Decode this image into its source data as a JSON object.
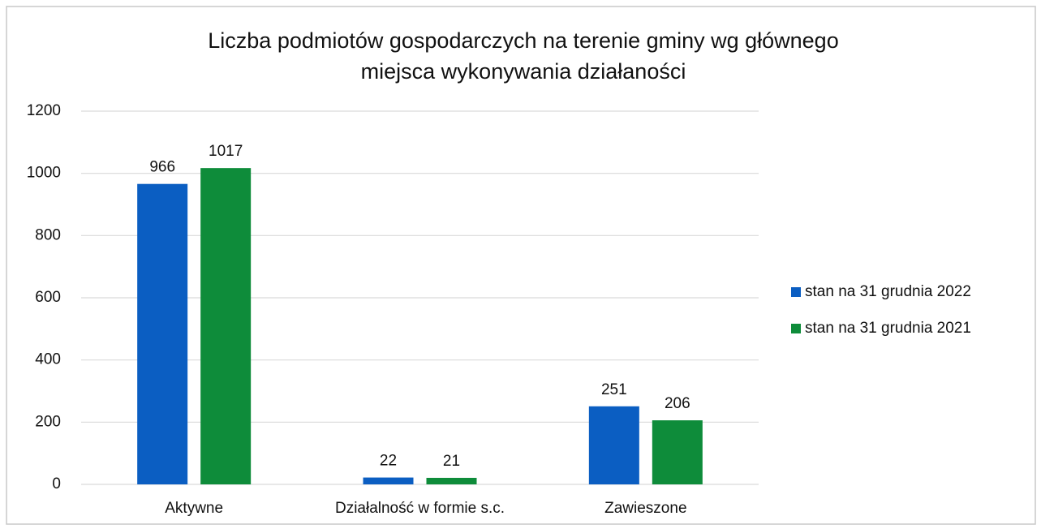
{
  "chart_data": {
    "type": "bar",
    "title": [
      "Liczba podmiotów gospodarczych na terenie gminy wg głównego",
      "miejsca wykonywania działaności"
    ],
    "categories": [
      "Aktywne",
      "Działalność w formie s.c.",
      "Zawieszone"
    ],
    "series": [
      {
        "name": "stan na 31 grudnia 2022",
        "color": "#0b5ec2",
        "values": [
          966,
          22,
          251
        ]
      },
      {
        "name": "stan na 31 grudnia 2021",
        "color": "#0e8c3a",
        "values": [
          1017,
          21,
          206
        ]
      }
    ],
    "ylim": [
      0,
      1200
    ],
    "yticks": [
      0,
      200,
      400,
      600,
      800,
      1000,
      1200
    ],
    "grid": true,
    "legend": "right"
  }
}
